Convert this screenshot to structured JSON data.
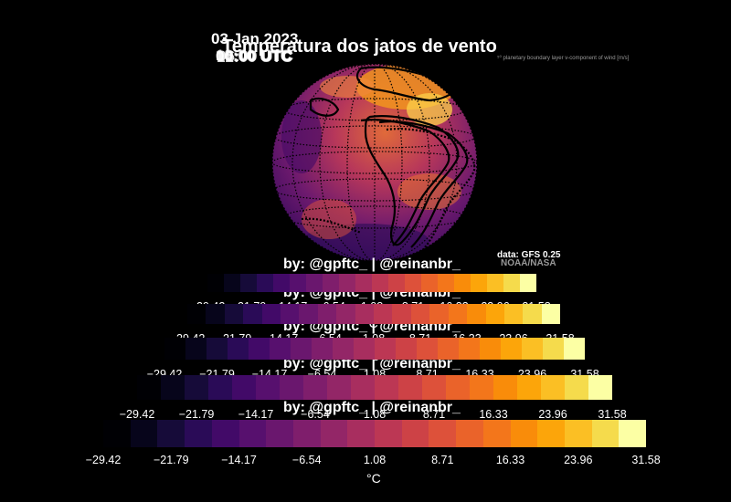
{
  "title": "Temperatura dos jatos de vento",
  "date": "03 Jan 2023",
  "times": [
    "00:00 UTC",
    "06:00 UTC",
    "12:00 UTC",
    "18:00 UTC"
  ],
  "variable_note": "⁵⁰ planetary boundary layer v-component of wind [m/s]",
  "credit": "by: @gpftc_ | @reinanbr_",
  "data_source": "data: GFS 0.25",
  "agency": "NOAA/NASA",
  "colorbar": {
    "ticks": [
      "−29.42",
      "−21.79",
      "−14.17",
      "−6.54",
      "1.08",
      "8.71",
      "16.33",
      "23.96",
      "31.58"
    ],
    "unit": "°C",
    "colors": [
      "#000004",
      "#07051b",
      "#160b39",
      "#2a0b57",
      "#420a68",
      "#57106e",
      "#6a176e",
      "#7f1e6c",
      "#932667",
      "#a82e5f",
      "#bc3754",
      "#cd4246",
      "#dd513a",
      "#ea632a",
      "#f3761b",
      "#f98c0a",
      "#fca50a",
      "#fbbf24",
      "#f5db4c",
      "#fcffa4"
    ]
  }
}
